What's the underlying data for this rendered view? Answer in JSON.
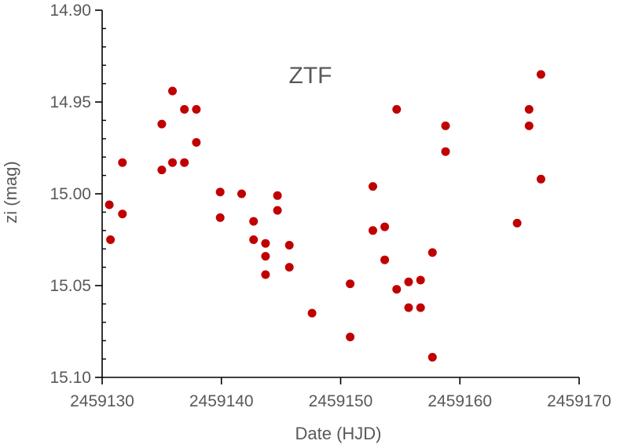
{
  "chart_data": {
    "type": "scatter",
    "title": "ZTF",
    "xlabel": "Date (HJD)",
    "ylabel": "zi (mag)",
    "xlim": [
      2459130,
      2459170
    ],
    "ylim": [
      14.9,
      15.1
    ],
    "y_inverted": true,
    "grid": false,
    "legend": "none",
    "x_ticks": [
      "2459130",
      "2459140",
      "2459150",
      "2459160",
      "2459170"
    ],
    "y_ticks": [
      "14.90",
      "14.95",
      "15.00",
      "15.05",
      "15.10"
    ],
    "marker_color": "#c00000",
    "series": [
      {
        "points": [
          [
            2459130.6,
            15.006
          ],
          [
            2459130.7,
            15.025
          ],
          [
            2459131.7,
            15.011
          ],
          [
            2459131.7,
            14.983
          ],
          [
            2459135.0,
            14.962
          ],
          [
            2459135.0,
            14.987
          ],
          [
            2459135.9,
            14.944
          ],
          [
            2459135.9,
            14.983
          ],
          [
            2459136.9,
            14.954
          ],
          [
            2459136.9,
            14.983
          ],
          [
            2459137.9,
            14.954
          ],
          [
            2459137.9,
            14.972
          ],
          [
            2459139.9,
            14.999
          ],
          [
            2459139.9,
            15.013
          ],
          [
            2459141.7,
            15.0
          ],
          [
            2459142.7,
            15.015
          ],
          [
            2459142.7,
            15.025
          ],
          [
            2459143.7,
            15.027
          ],
          [
            2459143.7,
            15.034
          ],
          [
            2459143.7,
            15.044
          ],
          [
            2459144.7,
            15.001
          ],
          [
            2459144.7,
            15.009
          ],
          [
            2459145.7,
            15.028
          ],
          [
            2459145.7,
            15.04
          ],
          [
            2459147.6,
            15.065
          ],
          [
            2459150.8,
            15.049
          ],
          [
            2459150.8,
            15.078
          ],
          [
            2459152.7,
            14.996
          ],
          [
            2459152.7,
            15.02
          ],
          [
            2459153.7,
            15.018
          ],
          [
            2459153.7,
            15.036
          ],
          [
            2459154.7,
            14.954
          ],
          [
            2459154.7,
            15.052
          ],
          [
            2459155.7,
            15.048
          ],
          [
            2459155.7,
            15.062
          ],
          [
            2459156.7,
            15.047
          ],
          [
            2459156.7,
            15.062
          ],
          [
            2459157.7,
            15.032
          ],
          [
            2459157.7,
            15.089
          ],
          [
            2459158.8,
            14.963
          ],
          [
            2459158.8,
            14.977
          ],
          [
            2459164.8,
            15.016
          ],
          [
            2459165.8,
            14.954
          ],
          [
            2459165.8,
            14.963
          ],
          [
            2459166.8,
            14.935
          ],
          [
            2459166.8,
            14.992
          ]
        ]
      }
    ]
  }
}
